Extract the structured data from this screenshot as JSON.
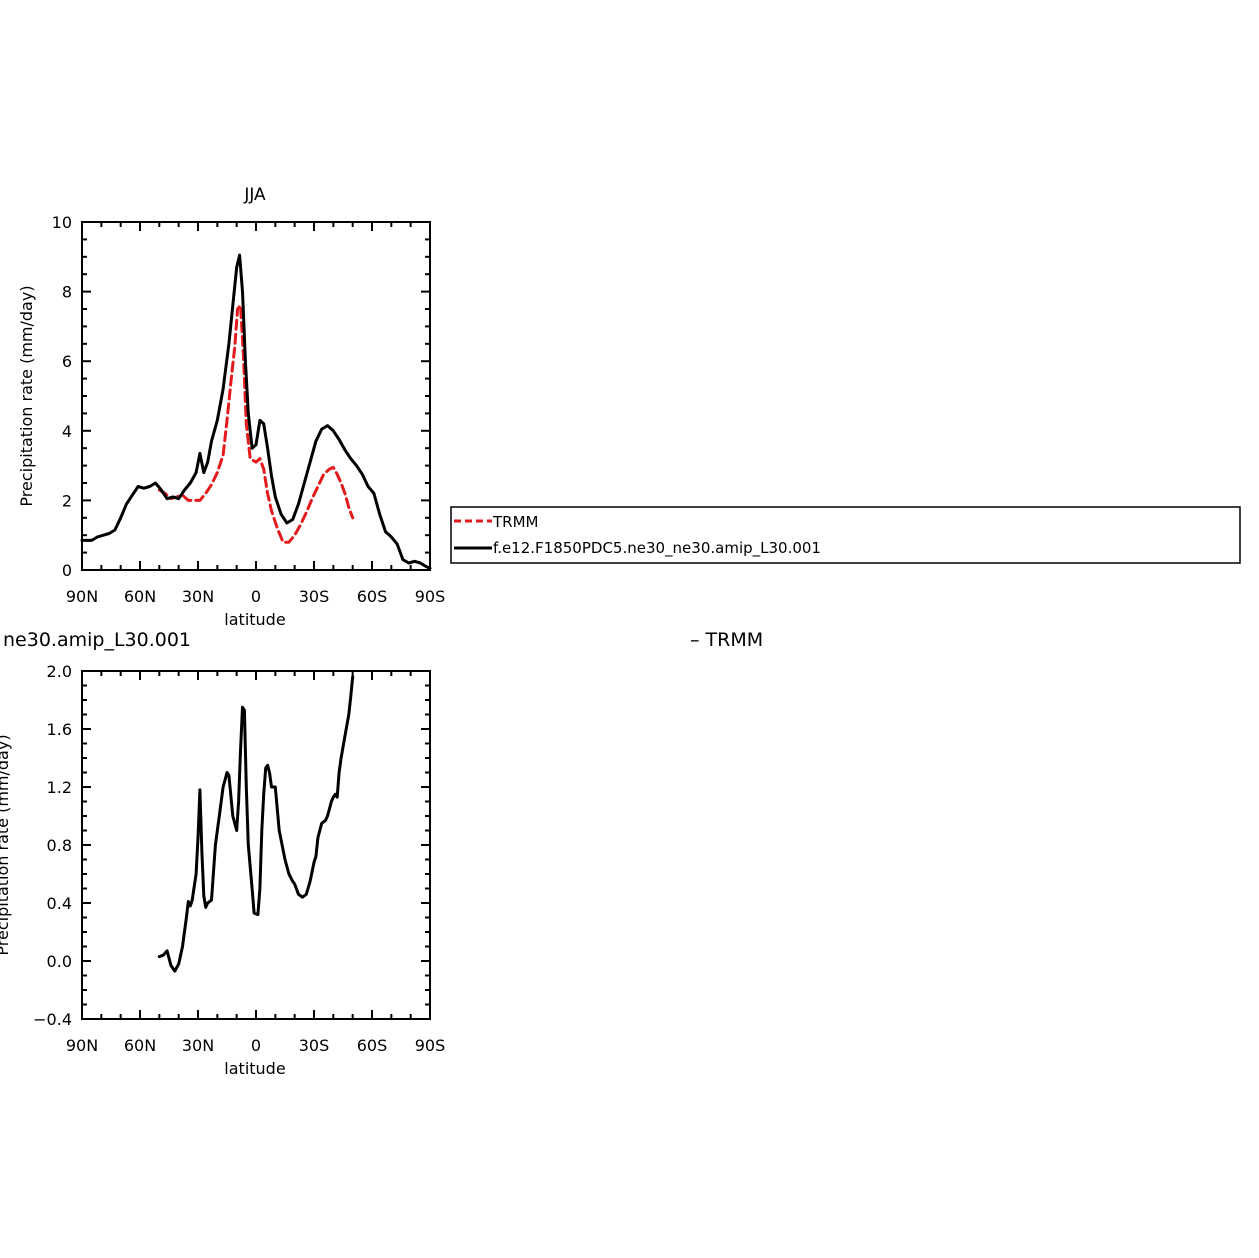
{
  "chart_data": [
    {
      "type": "line",
      "title": "JJA",
      "xlabel": "latitude",
      "ylabel": "Precipitation rate (mm/day)",
      "xlim": [
        90,
        -90
      ],
      "ylim": [
        0,
        10
      ],
      "xticks": [
        90,
        60,
        30,
        0,
        -30,
        -60,
        -90
      ],
      "xtick_labels": [
        "90N",
        "60N",
        "30N",
        "0",
        "30S",
        "60S",
        "90S"
      ],
      "yticks": [
        0,
        2,
        4,
        6,
        8,
        10
      ],
      "ytick_labels": [
        "0",
        "2",
        "4",
        "6",
        "8",
        "10"
      ],
      "legend": {
        "placement": "right, outside plot",
        "entries": [
          "TRMM",
          "f.e12.F1850PDC5.ne30_ne30.amip_L30.001"
        ]
      },
      "series": [
        {
          "name": "TRMM",
          "color": "#e41a1c",
          "dash": true,
          "x": [
            50,
            47,
            44,
            41,
            38,
            35,
            32,
            29,
            26,
            23,
            20,
            17,
            15,
            13,
            11,
            9.5,
            8,
            6.5,
            5,
            3,
            0,
            -2,
            -4,
            -6,
            -8,
            -11,
            -14,
            -17,
            -20,
            -23,
            -26,
            -29,
            -32,
            -35,
            -38,
            -40,
            -42,
            -44,
            -46,
            -48,
            -50
          ],
          "values": [
            2.3,
            2.2,
            2.05,
            2.1,
            2.15,
            2.0,
            2.0,
            2.0,
            2.2,
            2.45,
            2.8,
            3.3,
            4.3,
            5.4,
            6.4,
            7.5,
            7.6,
            6.2,
            4.2,
            3.2,
            3.1,
            3.2,
            2.9,
            2.2,
            1.7,
            1.2,
            0.8,
            0.8,
            1.0,
            1.3,
            1.65,
            2.05,
            2.4,
            2.75,
            2.9,
            2.95,
            2.75,
            2.5,
            2.2,
            1.8,
            1.5
          ]
        },
        {
          "name": "f.e12.F1850PDC5.ne30_ne30.amip_L30.001",
          "color": "#000000",
          "dash": false,
          "x": [
            90,
            85,
            82,
            79,
            76,
            73,
            70,
            67,
            64,
            61,
            58,
            55,
            52,
            49,
            46,
            43,
            40,
            37,
            34,
            31,
            29,
            27,
            25,
            23,
            20,
            17,
            14,
            12,
            10,
            8.5,
            7,
            5.5,
            4,
            2,
            0,
            -2,
            -4,
            -6,
            -8,
            -10,
            -13,
            -16,
            -19,
            -22,
            -25,
            -28,
            -31,
            -34,
            -37,
            -40,
            -43,
            -46,
            -49,
            -52,
            -55,
            -58,
            -61,
            -64,
            -67,
            -70,
            -73,
            -76,
            -79,
            -82,
            -85,
            -88,
            -90
          ],
          "values": [
            0.85,
            0.85,
            0.95,
            1.0,
            1.05,
            1.15,
            1.5,
            1.9,
            2.15,
            2.4,
            2.35,
            2.4,
            2.5,
            2.3,
            2.05,
            2.1,
            2.05,
            2.3,
            2.5,
            2.8,
            3.35,
            2.8,
            3.1,
            3.7,
            4.3,
            5.2,
            6.5,
            7.6,
            8.7,
            9.05,
            8.0,
            6.0,
            4.5,
            3.5,
            3.6,
            4.3,
            4.2,
            3.5,
            2.7,
            2.1,
            1.6,
            1.35,
            1.45,
            1.9,
            2.5,
            3.1,
            3.7,
            4.05,
            4.15,
            4.0,
            3.75,
            3.45,
            3.2,
            3.0,
            2.75,
            2.4,
            2.2,
            1.6,
            1.1,
            0.95,
            0.75,
            0.3,
            0.2,
            0.25,
            0.2,
            0.1,
            0.05
          ]
        }
      ]
    },
    {
      "type": "line",
      "title": "ne30.amip_L30.001",
      "xlabel": "latitude",
      "ylabel": "Precipitation rate (mm/day)",
      "xlim": [
        90,
        -90
      ],
      "ylim": [
        -0.4,
        2.0
      ],
      "xticks": [
        90,
        60,
        30,
        0,
        -30,
        -60,
        -90
      ],
      "xtick_labels": [
        "90N",
        "60N",
        "30N",
        "0",
        "30S",
        "60S",
        "90S"
      ],
      "yticks": [
        -0.4,
        0.0,
        0.4,
        0.8,
        1.2,
        1.6,
        2.0
      ],
      "ytick_labels": [
        "−0.4",
        "0.0",
        "0.4",
        "0.8",
        "1.2",
        "1.6",
        "2.0"
      ],
      "legend": {
        "placement": "right, outside plot",
        "entries": [
          "TRMM"
        ]
      },
      "series": [
        {
          "name": "TRMM",
          "color": "#000000",
          "dash": false,
          "x": [
            50,
            48,
            46,
            45,
            44,
            42,
            40,
            38,
            36,
            35,
            34,
            33,
            31,
            30,
            29,
            28,
            27,
            26,
            25,
            23,
            21,
            19,
            17,
            16,
            15,
            14,
            12,
            10,
            9,
            8,
            7,
            6,
            5,
            4,
            2,
            1,
            -1,
            -2,
            -3,
            -4,
            -5,
            -6,
            -7,
            -8,
            -10,
            -12,
            -15,
            -17,
            -19,
            -20,
            -22,
            -24,
            -26,
            -28,
            -30,
            -31,
            -32,
            -34,
            -36,
            -37,
            -38,
            -39,
            -40,
            -41,
            -42,
            -43,
            -44,
            -46,
            -48,
            -49,
            -50
          ],
          "values": [
            0.03,
            0.04,
            0.07,
            0.02,
            -0.03,
            -0.07,
            -0.02,
            0.1,
            0.3,
            0.41,
            0.38,
            0.42,
            0.6,
            0.85,
            1.18,
            0.75,
            0.45,
            0.37,
            0.4,
            0.42,
            0.8,
            1.0,
            1.2,
            1.25,
            1.3,
            1.28,
            1.0,
            0.9,
            1.1,
            1.45,
            1.75,
            1.73,
            1.2,
            0.8,
            0.5,
            0.33,
            0.32,
            0.5,
            0.9,
            1.15,
            1.33,
            1.35,
            1.3,
            1.2,
            1.2,
            0.9,
            0.7,
            0.6,
            0.55,
            0.53,
            0.46,
            0.44,
            0.46,
            0.55,
            0.68,
            0.72,
            0.85,
            0.95,
            0.97,
            1.0,
            1.05,
            1.1,
            1.13,
            1.15,
            1.13,
            1.3,
            1.4,
            1.55,
            1.7,
            1.82,
            1.96
          ]
        }
      ]
    }
  ]
}
